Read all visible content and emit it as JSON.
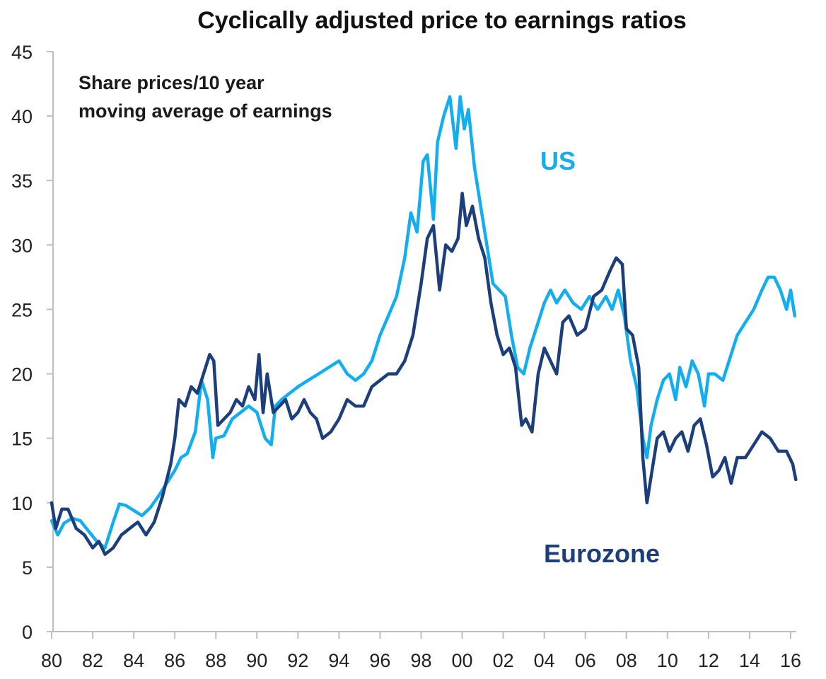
{
  "chart_data": {
    "type": "line",
    "title": "Cyclically adjusted price to earnings ratios",
    "annotation": [
      "Share prices/10 year",
      "moving average of earnings"
    ],
    "xlabel": "",
    "ylabel": "",
    "xlim": [
      1980,
      2016.3
    ],
    "ylim": [
      0,
      45
    ],
    "grid": false,
    "y_ticks": [
      0,
      5,
      10,
      15,
      20,
      25,
      30,
      35,
      40,
      45
    ],
    "y_tick_labels": [
      "0",
      "5",
      "10",
      "15",
      "20",
      "25",
      "30",
      "35",
      "40",
      "45"
    ],
    "x_ticks": [
      1980,
      1982,
      1984,
      1986,
      1988,
      1990,
      1992,
      1994,
      1996,
      1998,
      2000,
      2002,
      2004,
      2006,
      2008,
      2010,
      2012,
      2014,
      2016
    ],
    "x_tick_labels": [
      "80",
      "82",
      "84",
      "86",
      "88",
      "90",
      "92",
      "94",
      "96",
      "98",
      "00",
      "02",
      "04",
      "06",
      "08",
      "10",
      "12",
      "14",
      "16"
    ],
    "legend": "inline-labels",
    "series": [
      {
        "name": "US",
        "label_text": "US",
        "color": "#13aef0",
        "label_position": "upper-right of peak",
        "x": [
          1980.0,
          1980.3,
          1980.6,
          1981.0,
          1981.4,
          1981.8,
          1982.2,
          1982.6,
          1983.0,
          1983.3,
          1983.6,
          1984.0,
          1984.4,
          1984.8,
          1985.2,
          1985.6,
          1986.0,
          1986.3,
          1986.6,
          1987.0,
          1987.3,
          1987.6,
          1987.85,
          1988.0,
          1988.4,
          1988.8,
          1989.2,
          1989.6,
          1990.0,
          1990.4,
          1990.7,
          1990.9,
          1991.2,
          1991.6,
          1992.0,
          1992.5,
          1993.0,
          1993.5,
          1994.0,
          1994.4,
          1994.8,
          1995.2,
          1995.6,
          1996.0,
          1996.4,
          1996.8,
          1997.2,
          1997.5,
          1997.8,
          1998.1,
          1998.3,
          1998.6,
          1998.8,
          1999.1,
          1999.4,
          1999.7,
          1999.9,
          2000.1,
          2000.3,
          2000.6,
          2000.9,
          2001.2,
          2001.5,
          2001.8,
          2002.1,
          2002.4,
          2002.7,
          2003.0,
          2003.3,
          2003.7,
          2004.0,
          2004.3,
          2004.6,
          2005.0,
          2005.4,
          2005.8,
          2006.2,
          2006.6,
          2007.0,
          2007.3,
          2007.6,
          2007.9,
          2008.2,
          2008.5,
          2008.8,
          2009.0,
          2009.2,
          2009.5,
          2009.8,
          2010.1,
          2010.4,
          2010.6,
          2010.9,
          2011.2,
          2011.5,
          2011.8,
          2012.0,
          2012.3,
          2012.7,
          2013.0,
          2013.4,
          2013.8,
          2014.2,
          2014.6,
          2014.9,
          2015.2,
          2015.5,
          2015.8,
          2016.0,
          2016.2
        ],
        "values": [
          8.6,
          7.5,
          8.4,
          8.8,
          8.6,
          7.8,
          7.0,
          6.5,
          8.5,
          9.9,
          9.8,
          9.4,
          9.0,
          9.6,
          10.5,
          11.5,
          12.5,
          13.5,
          13.8,
          15.5,
          19.5,
          18.0,
          13.5,
          15.0,
          15.2,
          16.5,
          17.0,
          17.5,
          17.0,
          15.0,
          14.5,
          17.5,
          18.0,
          18.5,
          19.0,
          19.5,
          20.0,
          20.5,
          21.0,
          20.0,
          19.5,
          20.0,
          21.0,
          23.0,
          24.5,
          26.0,
          29.0,
          32.5,
          31.0,
          36.5,
          37.0,
          32.0,
          38.0,
          40.0,
          41.5,
          37.5,
          41.5,
          39.0,
          40.5,
          36.0,
          33.0,
          30.0,
          27.0,
          26.5,
          26.0,
          23.0,
          20.5,
          20.0,
          22.0,
          24.0,
          25.5,
          26.5,
          25.5,
          26.5,
          25.5,
          25.0,
          26.0,
          25.0,
          26.0,
          25.0,
          26.5,
          24.5,
          21.0,
          19.0,
          15.0,
          13.5,
          16.0,
          18.0,
          19.5,
          20.0,
          18.0,
          20.5,
          19.0,
          21.0,
          20.0,
          17.5,
          20.0,
          20.0,
          19.5,
          21.0,
          23.0,
          24.0,
          25.0,
          26.5,
          27.5,
          27.5,
          26.5,
          25.0,
          26.5,
          24.5
        ]
      },
      {
        "name": "Eurozone",
        "label_text": "Eurozone",
        "color": "#1c3f7c",
        "label_position": "lower-right",
        "x": [
          1980.0,
          1980.2,
          1980.5,
          1980.8,
          1981.2,
          1981.6,
          1982.0,
          1982.3,
          1982.6,
          1983.0,
          1983.4,
          1983.8,
          1984.2,
          1984.6,
          1985.0,
          1985.4,
          1985.8,
          1986.0,
          1986.2,
          1986.5,
          1986.8,
          1987.1,
          1987.4,
          1987.7,
          1987.9,
          1988.1,
          1988.4,
          1988.7,
          1989.0,
          1989.3,
          1989.6,
          1989.9,
          1990.1,
          1990.3,
          1990.5,
          1990.8,
          1991.1,
          1991.4,
          1991.7,
          1992.0,
          1992.3,
          1992.6,
          1992.9,
          1993.2,
          1993.6,
          1994.0,
          1994.4,
          1994.8,
          1995.2,
          1995.6,
          1996.0,
          1996.4,
          1996.8,
          1997.2,
          1997.6,
          1998.0,
          1998.3,
          1998.6,
          1998.9,
          1999.2,
          1999.5,
          1999.8,
          2000.0,
          2000.2,
          2000.5,
          2000.8,
          2001.1,
          2001.4,
          2001.7,
          2002.0,
          2002.3,
          2002.6,
          2002.9,
          2003.1,
          2003.4,
          2003.7,
          2004.0,
          2004.3,
          2004.6,
          2004.9,
          2005.2,
          2005.6,
          2006.0,
          2006.4,
          2006.8,
          2007.2,
          2007.5,
          2007.8,
          2008.0,
          2008.3,
          2008.6,
          2008.8,
          2009.0,
          2009.2,
          2009.5,
          2009.8,
          2010.1,
          2010.4,
          2010.7,
          2011.0,
          2011.3,
          2011.6,
          2011.9,
          2012.2,
          2012.5,
          2012.8,
          2013.1,
          2013.4,
          2013.8,
          2014.2,
          2014.6,
          2015.0,
          2015.4,
          2015.8,
          2016.1,
          2016.25
        ],
        "values": [
          10.0,
          8.0,
          9.5,
          9.5,
          8.0,
          7.5,
          6.5,
          7.0,
          6.0,
          6.5,
          7.5,
          8.0,
          8.5,
          7.5,
          8.5,
          10.5,
          13.0,
          15.0,
          18.0,
          17.5,
          19.0,
          18.5,
          20.0,
          21.5,
          21.0,
          16.0,
          16.5,
          17.0,
          18.0,
          17.5,
          19.0,
          18.0,
          21.5,
          17.0,
          20.0,
          17.0,
          17.5,
          18.0,
          16.5,
          17.0,
          18.0,
          17.0,
          16.5,
          15.0,
          15.5,
          16.5,
          18.0,
          17.5,
          17.5,
          19.0,
          19.5,
          20.0,
          20.0,
          21.0,
          23.0,
          27.0,
          30.5,
          31.5,
          26.5,
          30.0,
          29.5,
          30.5,
          34.0,
          31.5,
          33.0,
          30.5,
          29.0,
          25.5,
          23.0,
          21.5,
          22.0,
          20.5,
          16.0,
          16.5,
          15.5,
          20.0,
          22.0,
          21.0,
          20.0,
          24.0,
          24.5,
          23.0,
          23.5,
          26.0,
          26.5,
          28.0,
          29.0,
          28.5,
          23.5,
          23.0,
          20.5,
          13.5,
          10.0,
          12.0,
          15.0,
          15.5,
          14.0,
          15.0,
          15.5,
          14.0,
          16.0,
          16.5,
          14.5,
          12.0,
          12.5,
          13.5,
          11.5,
          13.5,
          13.5,
          14.5,
          15.5,
          15.0,
          14.0,
          14.0,
          13.0,
          11.8
        ]
      }
    ]
  }
}
